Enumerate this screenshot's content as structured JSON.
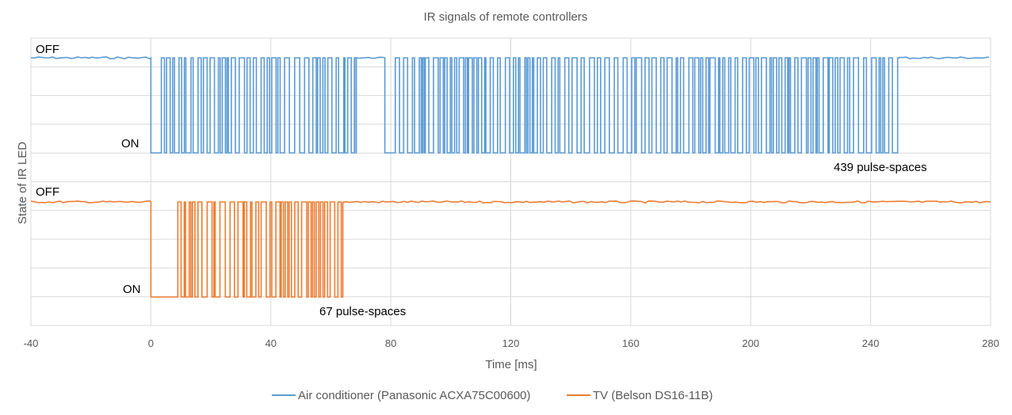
{
  "chart_data": {
    "type": "line",
    "title": "IR signals of remote controllers",
    "xlabel": "Time [ms]",
    "ylabel": "State of IR LED",
    "xlim": [
      -40,
      280
    ],
    "x_ticks": [
      -40,
      0,
      40,
      80,
      120,
      160,
      200,
      240,
      280
    ],
    "grid": true,
    "legend_position": "bottom",
    "series": [
      {
        "name": "Air conditioner (Panasonic ACXA75C00600)",
        "color": "#5B9BD5",
        "pulse_spaces": 439,
        "segments": [
          {
            "t_start": 0.0,
            "t_end": 3.5,
            "type": "on"
          },
          {
            "t_start": 3.5,
            "t_end": 68.5,
            "type": "burst"
          },
          {
            "t_start": 68.5,
            "t_end": 78.0,
            "type": "off"
          },
          {
            "t_start": 78.0,
            "t_end": 81.5,
            "type": "on"
          },
          {
            "t_start": 81.5,
            "t_end": 249.5,
            "type": "burst"
          }
        ]
      },
      {
        "name": "TV (Belson DS16-11B)",
        "color": "#ED7D31",
        "pulse_spaces": 67,
        "segments": [
          {
            "t_start": 0.0,
            "t_end": 9.0,
            "type": "on"
          },
          {
            "t_start": 9.0,
            "t_end": 64.0,
            "type": "burst"
          }
        ]
      }
    ],
    "annotations": [
      {
        "series": 0,
        "off_label": "OFF",
        "on_label": "ON",
        "count_label": "439 pulse-spaces"
      },
      {
        "series": 1,
        "off_label": "OFF",
        "on_label": "ON",
        "count_label": "67 pulse-spaces"
      }
    ]
  }
}
